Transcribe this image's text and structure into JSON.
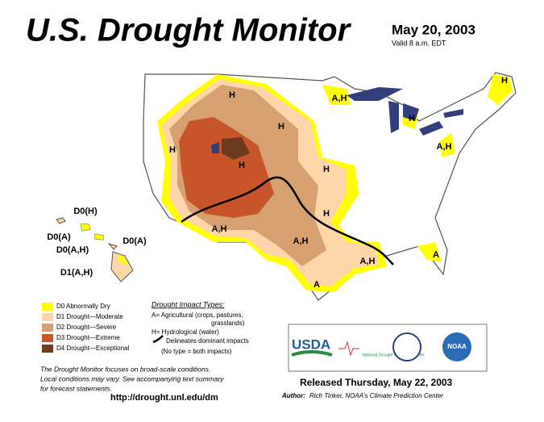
{
  "header": {
    "title": "U.S. Drought Monitor",
    "date": "May 20, 2003",
    "valid": "Valid 8 a.m. EDT"
  },
  "map_labels": [
    "H",
    "A,H",
    "H",
    "H",
    "H",
    "A,H",
    "H",
    "H",
    "H",
    "H",
    "A,H",
    "A,H",
    "A,H",
    "A",
    "A",
    "D0(H)",
    "D0(A)",
    "D0(A,H)",
    "D0(A)",
    "D1(A,H)"
  ],
  "legend": [
    {
      "label": "D0 Abnormally Dry",
      "color": "#ffff00"
    },
    {
      "label": "D1 Drought—Moderate",
      "color": "#fcd6a8"
    },
    {
      "label": "D2 Drought—Severe",
      "color": "#d6a070"
    },
    {
      "label": "D3 Drought—Extreme",
      "color": "#c8552a"
    },
    {
      "label": "D4 Drought—Exceptional",
      "color": "#6e3a1e"
    }
  ],
  "impacts": {
    "heading": "Drought Impact Types:",
    "lines": [
      "A= Agricultural (crops, pastures,",
      "grasslands)",
      "H= Hydrological (water)",
      "Delineates dominant impacts",
      "(No type = both impacts)"
    ]
  },
  "footnote": [
    "The Drought Monitor focuses on broad-scale conditions.",
    "Local conditions may vary. See accompanying text summary",
    "for forecast statements."
  ],
  "url": "http://drought.unl.edu/dm",
  "logos": [
    "USDA",
    "National Drought Mitigation Center",
    "NOAA"
  ],
  "released": "Released Thursday, May 22, 2003",
  "author_label": "Author:",
  "author": "Rich Tinker, NOAA's Climate Prediction Center"
}
